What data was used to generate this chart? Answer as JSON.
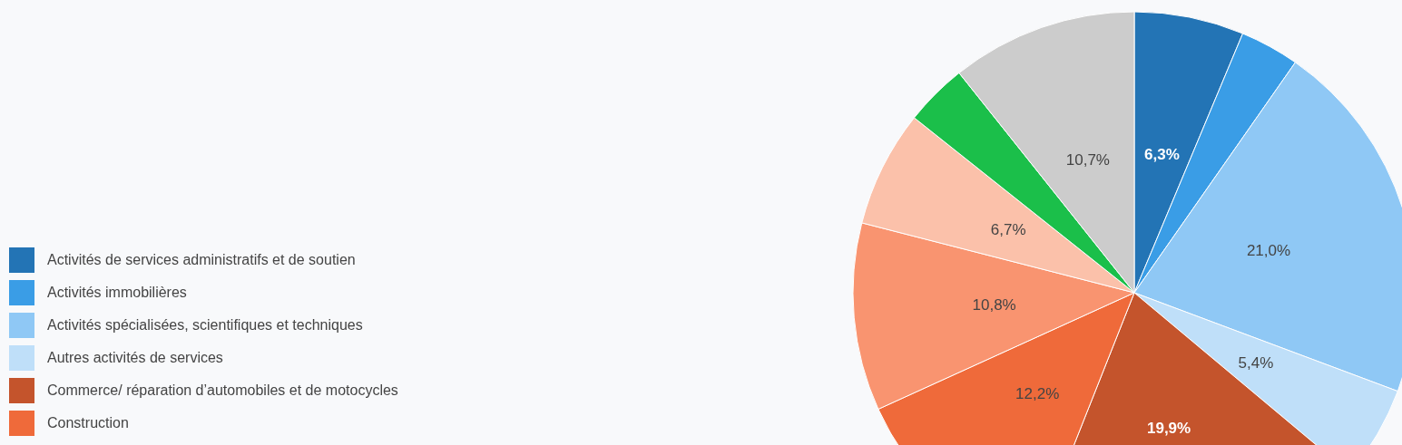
{
  "chart_data": {
    "type": "pie",
    "categories": [
      "Activités de services administratifs et de soutien",
      "Activités immobilières",
      "Activités spécialisées, scientifiques et techniques",
      "Autres activités de services",
      "Commerce/ réparation d’automobiles et de motocycles",
      "Construction",
      null,
      null,
      null,
      null
    ],
    "values": [
      6.3,
      3.4,
      21.0,
      5.4,
      19.9,
      12.2,
      10.8,
      6.7,
      3.6,
      10.7
    ],
    "value_labels": [
      "6,3%",
      null,
      "21,0%",
      "5,4%",
      "19,9%",
      "12,2%",
      "10,8%",
      "6,7%",
      null,
      "10,7%"
    ],
    "colors": [
      "#2374b5",
      "#3a9de6",
      "#8fc8f5",
      "#bfdff9",
      "#c4542c",
      "#ef6a3a",
      "#f99470",
      "#fbc1aa",
      "#1bbf4a",
      "#cccccc"
    ],
    "legend": "left"
  }
}
